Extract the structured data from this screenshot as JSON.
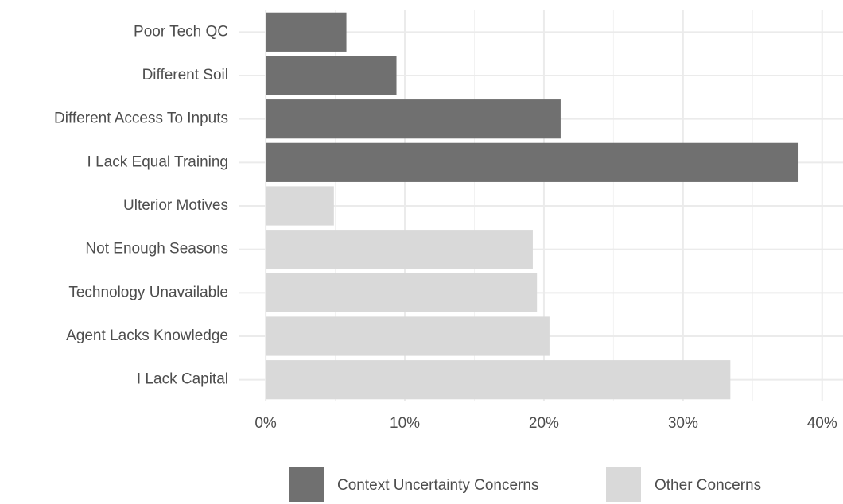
{
  "chart_data": {
    "type": "bar",
    "orientation": "horizontal",
    "categories": [
      "Poor Tech QC",
      "Different Soil",
      "Different Access To Inputs",
      "I Lack Equal Training",
      "Ulterior Motives",
      "Not Enough Seasons",
      "Technology Unavailable",
      "Agent Lacks Knowledge",
      "I Lack Capital"
    ],
    "series": [
      {
        "name": "Context Uncertainty Concerns",
        "color": "#707070",
        "values": [
          5.8,
          9.4,
          21.2,
          38.3,
          null,
          null,
          null,
          null,
          null
        ]
      },
      {
        "name": "Other Concerns",
        "color": "#d9d9d9",
        "values": [
          null,
          null,
          null,
          null,
          4.9,
          19.2,
          19.5,
          20.4,
          33.4
        ]
      }
    ],
    "xlim": [
      -1.95,
      41.5
    ],
    "xticks": [
      {
        "value": 0,
        "label": "0%"
      },
      {
        "value": 10,
        "label": "10%"
      },
      {
        "value": 20,
        "label": "20%"
      },
      {
        "value": 30,
        "label": "30%"
      },
      {
        "value": 40,
        "label": "40%"
      }
    ],
    "minor_xticks": [
      5,
      15,
      25,
      35
    ],
    "grid": true,
    "legend": "bottom"
  }
}
